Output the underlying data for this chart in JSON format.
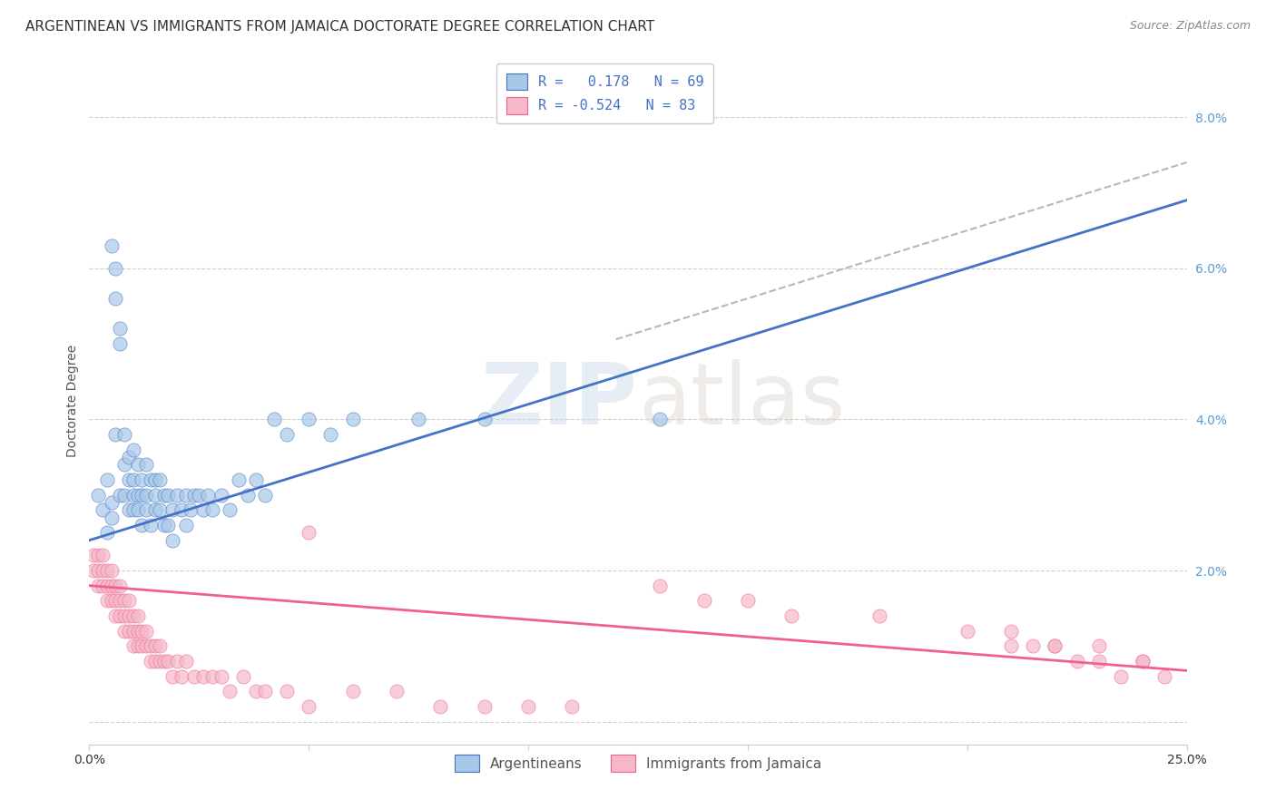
{
  "title": "ARGENTINEAN VS IMMIGRANTS FROM JAMAICA DOCTORATE DEGREE CORRELATION CHART",
  "source": "Source: ZipAtlas.com",
  "ylabel": "Doctorate Degree",
  "y_ticks": [
    0.0,
    0.02,
    0.04,
    0.06,
    0.08
  ],
  "y_tick_labels": [
    "",
    "2.0%",
    "4.0%",
    "6.0%",
    "8.0%"
  ],
  "x_lim": [
    0.0,
    0.25
  ],
  "y_lim": [
    -0.003,
    0.088
  ],
  "color_blue": "#a8c8e8",
  "color_pink": "#f4b8c8",
  "line_blue": "#4472c4",
  "line_pink": "#f06090",
  "line_dashed_color": "#b0b8c8",
  "background_color": "#ffffff",
  "watermark_zip": "ZIP",
  "watermark_atlas": "atlas",
  "title_fontsize": 11,
  "source_fontsize": 9,
  "axis_label_fontsize": 10,
  "tick_fontsize": 10,
  "blue_regression_slope": 0.18,
  "blue_regression_intercept": 0.024,
  "pink_regression_slope": -0.045,
  "pink_regression_intercept": 0.018,
  "argentinean_x": [
    0.002,
    0.003,
    0.004,
    0.004,
    0.005,
    0.005,
    0.005,
    0.006,
    0.006,
    0.006,
    0.007,
    0.007,
    0.007,
    0.008,
    0.008,
    0.008,
    0.009,
    0.009,
    0.009,
    0.01,
    0.01,
    0.01,
    0.01,
    0.011,
    0.011,
    0.011,
    0.012,
    0.012,
    0.012,
    0.013,
    0.013,
    0.013,
    0.014,
    0.014,
    0.015,
    0.015,
    0.015,
    0.016,
    0.016,
    0.017,
    0.017,
    0.018,
    0.018,
    0.019,
    0.019,
    0.02,
    0.021,
    0.022,
    0.022,
    0.023,
    0.024,
    0.025,
    0.026,
    0.027,
    0.028,
    0.03,
    0.032,
    0.034,
    0.036,
    0.038,
    0.04,
    0.042,
    0.045,
    0.05,
    0.055,
    0.06,
    0.075,
    0.09,
    0.13
  ],
  "argentinean_y": [
    0.03,
    0.028,
    0.032,
    0.025,
    0.063,
    0.027,
    0.029,
    0.06,
    0.056,
    0.038,
    0.05,
    0.052,
    0.03,
    0.038,
    0.034,
    0.03,
    0.035,
    0.032,
    0.028,
    0.036,
    0.032,
    0.03,
    0.028,
    0.034,
    0.03,
    0.028,
    0.032,
    0.03,
    0.026,
    0.034,
    0.03,
    0.028,
    0.032,
    0.026,
    0.032,
    0.03,
    0.028,
    0.032,
    0.028,
    0.03,
    0.026,
    0.03,
    0.026,
    0.028,
    0.024,
    0.03,
    0.028,
    0.03,
    0.026,
    0.028,
    0.03,
    0.03,
    0.028,
    0.03,
    0.028,
    0.03,
    0.028,
    0.032,
    0.03,
    0.032,
    0.03,
    0.04,
    0.038,
    0.04,
    0.038,
    0.04,
    0.04,
    0.04,
    0.04
  ],
  "jamaica_x": [
    0.001,
    0.001,
    0.002,
    0.002,
    0.002,
    0.003,
    0.003,
    0.003,
    0.004,
    0.004,
    0.004,
    0.005,
    0.005,
    0.005,
    0.006,
    0.006,
    0.006,
    0.007,
    0.007,
    0.007,
    0.008,
    0.008,
    0.008,
    0.009,
    0.009,
    0.009,
    0.01,
    0.01,
    0.01,
    0.011,
    0.011,
    0.011,
    0.012,
    0.012,
    0.013,
    0.013,
    0.014,
    0.014,
    0.015,
    0.015,
    0.016,
    0.016,
    0.017,
    0.018,
    0.019,
    0.02,
    0.021,
    0.022,
    0.024,
    0.026,
    0.028,
    0.03,
    0.032,
    0.035,
    0.038,
    0.04,
    0.045,
    0.05,
    0.06,
    0.07,
    0.08,
    0.09,
    0.1,
    0.11,
    0.13,
    0.14,
    0.15,
    0.16,
    0.18,
    0.2,
    0.21,
    0.22,
    0.23,
    0.24,
    0.21,
    0.22,
    0.23,
    0.24,
    0.215,
    0.225,
    0.235,
    0.245,
    0.05
  ],
  "jamaica_y": [
    0.02,
    0.022,
    0.018,
    0.02,
    0.022,
    0.018,
    0.02,
    0.022,
    0.018,
    0.02,
    0.016,
    0.018,
    0.02,
    0.016,
    0.018,
    0.016,
    0.014,
    0.016,
    0.018,
    0.014,
    0.016,
    0.014,
    0.012,
    0.014,
    0.016,
    0.012,
    0.014,
    0.012,
    0.01,
    0.012,
    0.014,
    0.01,
    0.012,
    0.01,
    0.012,
    0.01,
    0.01,
    0.008,
    0.01,
    0.008,
    0.01,
    0.008,
    0.008,
    0.008,
    0.006,
    0.008,
    0.006,
    0.008,
    0.006,
    0.006,
    0.006,
    0.006,
    0.004,
    0.006,
    0.004,
    0.004,
    0.004,
    0.025,
    0.004,
    0.004,
    0.002,
    0.002,
    0.002,
    0.002,
    0.018,
    0.016,
    0.016,
    0.014,
    0.014,
    0.012,
    0.012,
    0.01,
    0.01,
    0.008,
    0.01,
    0.01,
    0.008,
    0.008,
    0.01,
    0.008,
    0.006,
    0.006,
    0.002
  ]
}
